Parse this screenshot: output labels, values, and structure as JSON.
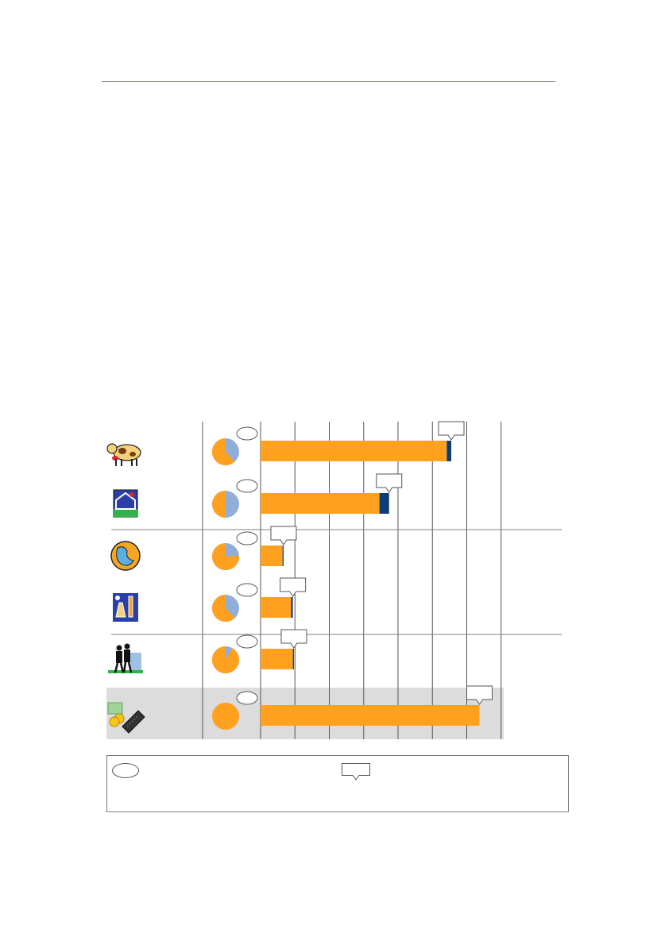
{
  "colors": {
    "orange": "#ffa01e",
    "pie_blue": "#8fafda",
    "bar_navy": "#0b3d7a",
    "grid": "#555555",
    "shade": "#dcdcdc",
    "separator": "#808080"
  },
  "chart_data": {
    "type": "bar",
    "stacked": true,
    "orientation": "horizontal",
    "categories": [
      {
        "icon": "cow-icon"
      },
      {
        "icon": "greenhouse-icon"
      },
      {
        "icon": "globe-icon"
      },
      {
        "icon": "lab-equipment-icon"
      },
      {
        "icon": "people-walking-icon"
      },
      {
        "icon": "calculator-money-icon"
      }
    ],
    "series": [
      {
        "color": "#ffa01e",
        "values": [
          54.2,
          34.6,
          6.4,
          8.9,
          9.4,
          63.7
        ]
      },
      {
        "color": "#0b3d7a",
        "values": [
          1.3,
          2.8,
          0.3,
          0.5,
          0.3,
          0
        ]
      }
    ],
    "xlim": [
      0,
      70
    ],
    "grid_step": 10,
    "grid": true,
    "pie_fractions_orange": [
      0.62,
      0.5,
      0.76,
      0.62,
      0.92,
      1.0
    ],
    "highlighted_row": 5
  },
  "legend": {
    "oval_icon": "oval-marker-icon",
    "callout_icon": "callout-marker-icon"
  }
}
